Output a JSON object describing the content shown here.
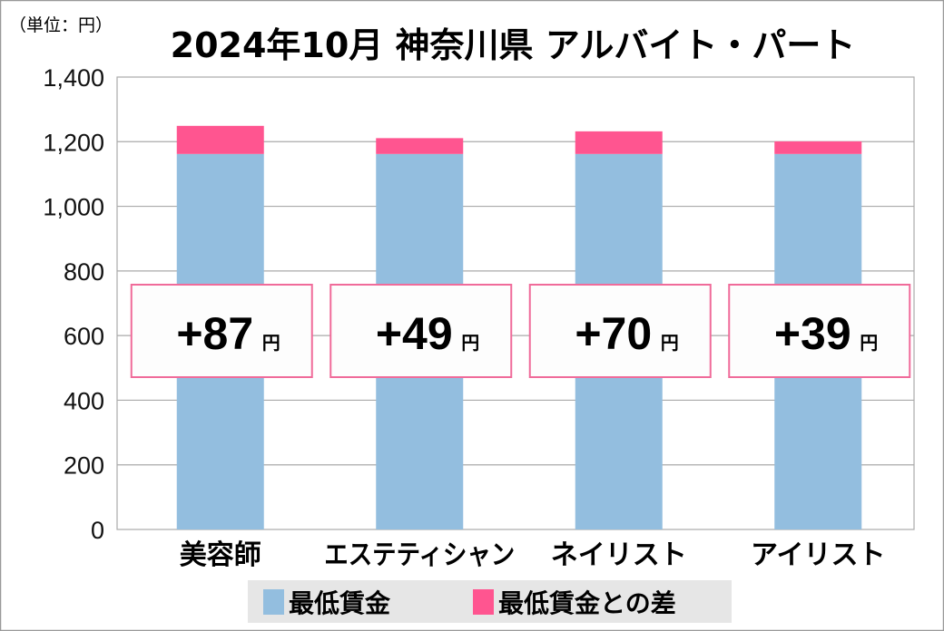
{
  "chart_data": {
    "type": "bar",
    "stacked": true,
    "title": "2024年10月 神奈川県 アルバイト・パート",
    "unit_label": "（単位：円）",
    "categories": [
      "美容師",
      "エステティシャン",
      "ネイリスト",
      "アイリスト"
    ],
    "series": [
      {
        "name": "最低賃金",
        "values": [
          1162,
          1162,
          1162,
          1162
        ],
        "color": "#93bedf"
      },
      {
        "name": "最低賃金との差",
        "values": [
          87,
          49,
          70,
          39
        ],
        "color": "#ff5590"
      }
    ],
    "data_labels": [
      "+87",
      "+49",
      "+70",
      "+39"
    ],
    "data_label_unit": "円",
    "ylim": [
      0,
      1400
    ],
    "yticks": [
      "0",
      "200",
      "400",
      "600",
      "800",
      "1,000",
      "1,200",
      "1,400"
    ],
    "ytick_values": [
      0,
      200,
      400,
      600,
      800,
      1000,
      1200,
      1400
    ],
    "grid": true,
    "legend_position": "bottom"
  }
}
